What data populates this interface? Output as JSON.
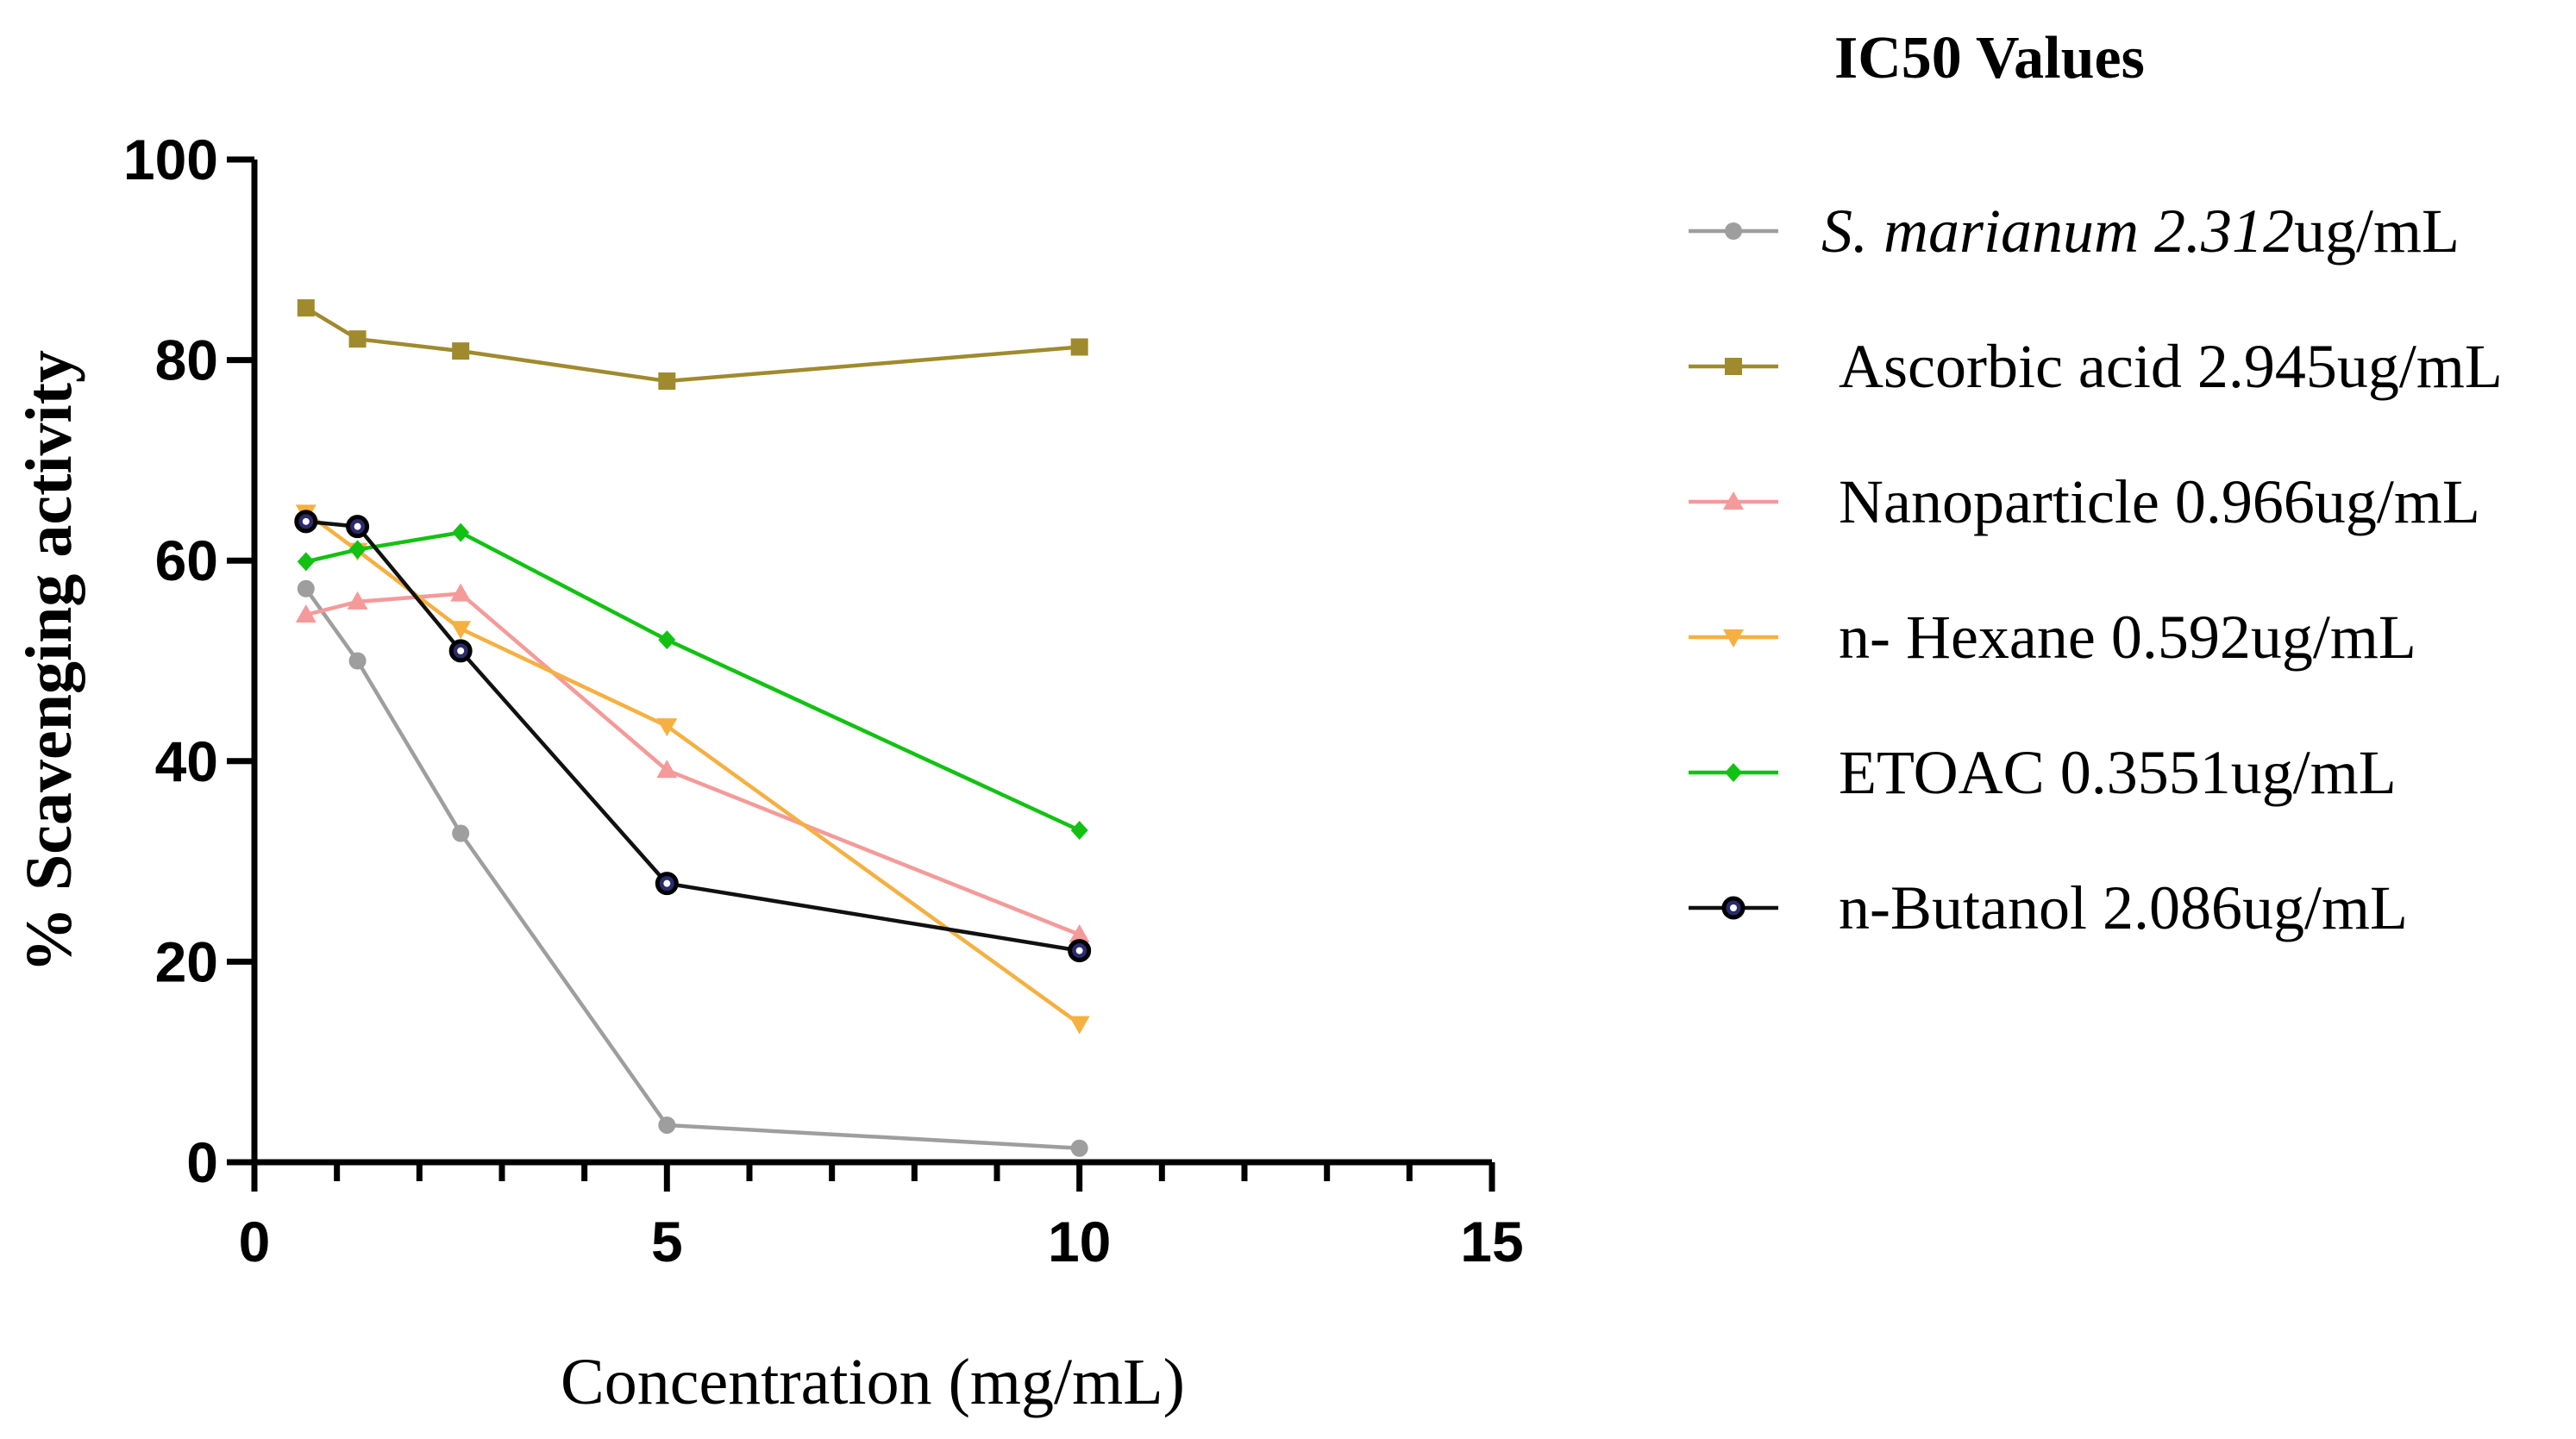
{
  "chart_data": {
    "type": "line",
    "title": "",
    "xlabel": "Concentration (mg/mL)",
    "ylabel": "% Scavenging activity",
    "xlim": [
      0,
      15
    ],
    "ylim": [
      0,
      100
    ],
    "xticks": [
      "0",
      "5",
      "10",
      "15"
    ],
    "yticks": [
      "0",
      "20",
      "40",
      "60",
      "80",
      "100"
    ],
    "legend": {
      "title": "IC50 Values",
      "position": "right"
    },
    "x": [
      0.625,
      1.25,
      2.5,
      5,
      10
    ],
    "series": [
      {
        "name": "S. marianum",
        "ic50": "2.312",
        "unit": "ug/mL",
        "color": "#9e9e9e",
        "marker": "circle",
        "values": [
          57.2,
          50.0,
          32.8,
          3.7,
          1.4
        ]
      },
      {
        "name": "Ascorbic acid",
        "ic50": "2.945",
        "unit": "ug/mL",
        "color": "#a08a2e",
        "marker": "square",
        "values": [
          85.2,
          82.1,
          80.9,
          77.9,
          81.3
        ]
      },
      {
        "name": "Nanoparticle",
        "ic50": "0.966",
        "unit": "ug/mL",
        "color": "#f49a9a",
        "marker": "triangle-up",
        "values": [
          54.6,
          55.9,
          56.7,
          39.1,
          22.7
        ]
      },
      {
        "name": "n- Hexane",
        "ic50": "0.592",
        "unit": "ug/mL",
        "color": "#f5b041",
        "marker": "triangle-down",
        "values": [
          64.8,
          61.0,
          53.2,
          43.5,
          13.8
        ]
      },
      {
        "name": "ETOAC",
        "ic50": "0.3551",
        "unit": "ug/mL",
        "color": "#12c212",
        "marker": "diamond",
        "values": [
          59.9,
          61.1,
          62.8,
          52.1,
          33.1
        ]
      },
      {
        "name": "n-Butanol",
        "ic50": "2.086",
        "unit": "ug/mL",
        "color": "#111111",
        "marker": "ring",
        "values": [
          63.9,
          63.4,
          51.0,
          27.8,
          21.1
        ]
      }
    ]
  }
}
